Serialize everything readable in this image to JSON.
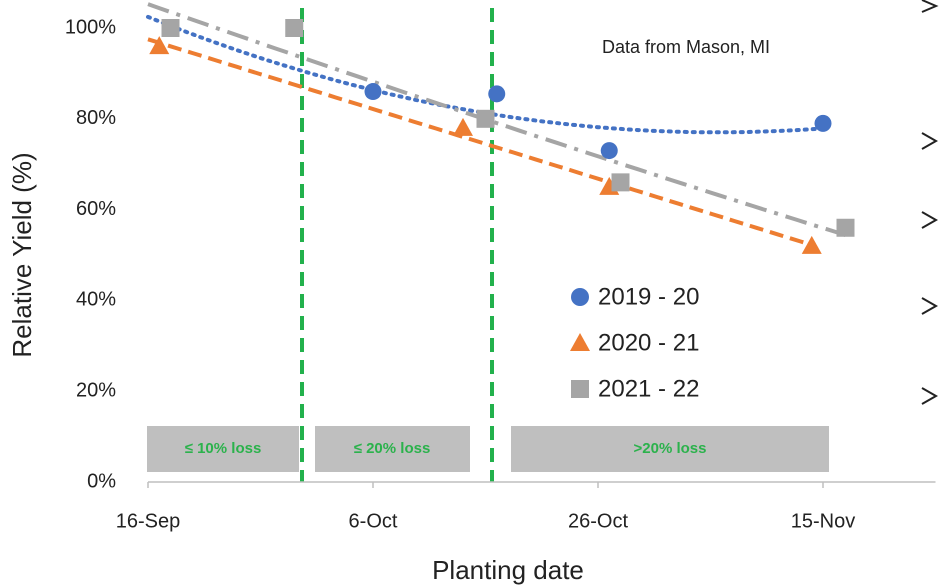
{
  "chart_data": {
    "type": "scatter",
    "annotation": "Data from Mason, MI",
    "x_label": "Planting date",
    "y_label": "Relative Yield (%)",
    "xlim": [
      259,
      329
    ],
    "xticks": [
      {
        "value": 259,
        "label": "16-Sep"
      },
      {
        "value": 279,
        "label": "6-Oct"
      },
      {
        "value": 299,
        "label": "26-Oct"
      },
      {
        "value": 319,
        "label": "15-Nov"
      }
    ],
    "ylim": [
      0,
      100
    ],
    "yticks": [
      {
        "value": 0,
        "label": "0%"
      },
      {
        "value": 20,
        "label": "20%"
      },
      {
        "value": 40,
        "label": "40%"
      },
      {
        "value": 60,
        "label": "60%"
      },
      {
        "value": 80,
        "label": "80%"
      },
      {
        "value": 100,
        "label": "100%"
      }
    ],
    "grid": false,
    "zones": [
      "≤ 10% loss",
      "≤ 20% loss",
      ">20% loss"
    ],
    "series": [
      {
        "name": "2019 - 20",
        "color": "#4472c4",
        "marker": "circle",
        "trendline": {
          "degree": 2,
          "style": "dotted"
        },
        "x": [
          261,
          279,
          290,
          300,
          319
        ],
        "values": [
          100,
          86,
          85.5,
          73,
          79
        ]
      },
      {
        "name": "2020 - 21",
        "color": "#ed7d31",
        "marker": "triangle",
        "trendline": {
          "degree": 1,
          "style": "dashed"
        },
        "x": [
          260,
          287,
          300,
          318
        ],
        "values": [
          96,
          78,
          65,
          52
        ]
      },
      {
        "name": "2021 - 22",
        "color": "#a5a5a5",
        "marker": "square",
        "trendline": {
          "degree": 2,
          "style": "dashdot"
        },
        "x": [
          261,
          272,
          289,
          301,
          321
        ],
        "values": [
          100,
          100,
          80,
          66,
          56
        ]
      }
    ]
  }
}
